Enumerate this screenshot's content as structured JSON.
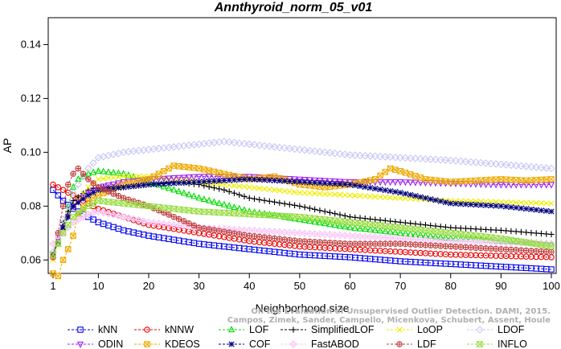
{
  "chart_data": {
    "type": "line",
    "title": "Annthyroid_norm_05_v01",
    "xlabel": "Neighborhood size",
    "ylabel": "AP",
    "xlim": [
      1,
      100
    ],
    "ylim": [
      0.055,
      0.15
    ],
    "xticks": [
      1,
      10,
      20,
      30,
      40,
      50,
      60,
      70,
      80,
      90,
      100
    ],
    "yticks": [
      0.06,
      0.08,
      0.1,
      0.12,
      0.14
    ],
    "ytick_labels": [
      "0.06",
      "0.08",
      "0.10",
      "0.12",
      "0.14"
    ],
    "legend_position": "bottom",
    "watermark": [
      "Campos, Zimek, Sander, Campello, Micenkova, Schubert, Assent, Houle",
      "On the Evaluation of Unsupervised Outlier Detection. DAMI, 2015."
    ],
    "series": [
      {
        "name": "kNN",
        "color": "#0000ee",
        "marker": "square",
        "x": [
          1,
          2,
          3,
          5,
          8,
          10,
          15,
          20,
          30,
          40,
          50,
          60,
          70,
          80,
          90,
          100
        ],
        "y": [
          0.086,
          0.084,
          0.082,
          0.079,
          0.076,
          0.074,
          0.071,
          0.069,
          0.066,
          0.064,
          0.062,
          0.061,
          0.0595,
          0.0585,
          0.0575,
          0.0565
        ]
      },
      {
        "name": "kNNW",
        "color": "#ee0000",
        "marker": "circle",
        "x": [
          1,
          2,
          3,
          5,
          8,
          10,
          15,
          20,
          30,
          40,
          50,
          60,
          70,
          80,
          90,
          100
        ],
        "y": [
          0.088,
          0.087,
          0.086,
          0.084,
          0.081,
          0.079,
          0.076,
          0.073,
          0.07,
          0.067,
          0.065,
          0.064,
          0.063,
          0.062,
          0.0615,
          0.061
        ]
      },
      {
        "name": "LOF",
        "color": "#00dd00",
        "marker": "triangle",
        "x": [
          1,
          2,
          3,
          4,
          5,
          6,
          8,
          10,
          15,
          20,
          25,
          30,
          40,
          50,
          60,
          70,
          80,
          90,
          100
        ],
        "y": [
          0.062,
          0.066,
          0.072,
          0.08,
          0.087,
          0.09,
          0.092,
          0.093,
          0.092,
          0.089,
          0.086,
          0.083,
          0.078,
          0.075,
          0.072,
          0.07,
          0.068,
          0.067,
          0.066
        ]
      },
      {
        "name": "SimplifiedLOF",
        "color": "#000000",
        "marker": "plus",
        "x": [
          1,
          2,
          3,
          5,
          8,
          10,
          15,
          20,
          25,
          30,
          35,
          40,
          50,
          60,
          70,
          80,
          90,
          100
        ],
        "y": [
          0.061,
          0.068,
          0.074,
          0.082,
          0.086,
          0.087,
          0.087,
          0.088,
          0.089,
          0.088,
          0.086,
          0.083,
          0.08,
          0.076,
          0.074,
          0.072,
          0.071,
          0.0695
        ]
      },
      {
        "name": "LoOP",
        "color": "#eeee00",
        "marker": "x",
        "x": [
          1,
          3,
          5,
          8,
          10,
          15,
          20,
          25,
          30,
          40,
          50,
          60,
          70,
          80,
          90,
          100
        ],
        "y": [
          0.06,
          0.072,
          0.08,
          0.087,
          0.09,
          0.091,
          0.091,
          0.09,
          0.089,
          0.087,
          0.085,
          0.084,
          0.083,
          0.082,
          0.0815,
          0.081
        ]
      },
      {
        "name": "LDOF",
        "color": "#c8c8f8",
        "marker": "diamond",
        "x": [
          1,
          3,
          5,
          8,
          10,
          15,
          20,
          25,
          30,
          35,
          40,
          50,
          60,
          70,
          80,
          90,
          100
        ],
        "y": [
          0.063,
          0.075,
          0.085,
          0.094,
          0.098,
          0.1,
          0.101,
          0.102,
          0.103,
          0.104,
          0.103,
          0.101,
          0.099,
          0.098,
          0.097,
          0.0955,
          0.094
        ]
      },
      {
        "name": "ODIN",
        "color": "#a020f0",
        "marker": "triangledown",
        "x": [
          1,
          3,
          5,
          8,
          10,
          15,
          20,
          30,
          40,
          50,
          60,
          70,
          80,
          90,
          100
        ],
        "y": [
          0.062,
          0.072,
          0.08,
          0.085,
          0.087,
          0.089,
          0.09,
          0.091,
          0.091,
          0.09,
          0.089,
          0.089,
          0.0885,
          0.088,
          0.088
        ]
      },
      {
        "name": "KDEOS",
        "color": "#eeaa00",
        "marker": "boxx",
        "x": [
          1,
          2,
          3,
          4,
          5,
          6,
          8,
          10,
          15,
          20,
          25,
          30,
          35,
          40,
          45,
          50,
          55,
          60,
          65,
          68,
          70,
          75,
          80,
          85,
          90,
          95,
          100
        ],
        "y": [
          0.055,
          0.054,
          0.06,
          0.064,
          0.069,
          0.077,
          0.082,
          0.084,
          0.088,
          0.09,
          0.095,
          0.094,
          0.092,
          0.09,
          0.091,
          0.088,
          0.087,
          0.088,
          0.09,
          0.094,
          0.093,
          0.09,
          0.089,
          0.0895,
          0.09,
          0.0895,
          0.09
        ]
      },
      {
        "name": "COF",
        "color": "#000080",
        "marker": "star",
        "x": [
          1,
          2,
          3,
          5,
          8,
          10,
          15,
          20,
          30,
          40,
          50,
          60,
          70,
          80,
          90,
          100
        ],
        "y": [
          0.062,
          0.067,
          0.072,
          0.08,
          0.084,
          0.086,
          0.087,
          0.088,
          0.089,
          0.09,
          0.089,
          0.088,
          0.085,
          0.081,
          0.08,
          0.078
        ]
      },
      {
        "name": "FastABOD",
        "color": "#f8c8f8",
        "marker": "diamondplus",
        "x": [
          1,
          3,
          5,
          8,
          10,
          15,
          20,
          30,
          40,
          50,
          60,
          70,
          80,
          90,
          100
        ],
        "y": [
          0.066,
          0.07,
          0.074,
          0.077,
          0.078,
          0.076,
          0.074,
          0.072,
          0.071,
          0.07,
          0.069,
          0.068,
          0.067,
          0.0665,
          0.066
        ]
      },
      {
        "name": "LDF",
        "color": "#c04040",
        "marker": "circleplus",
        "x": [
          1,
          2,
          3,
          4,
          5,
          6,
          8,
          10,
          15,
          20,
          25,
          30,
          40,
          50,
          60,
          70,
          80,
          90,
          100
        ],
        "y": [
          0.061,
          0.07,
          0.08,
          0.088,
          0.092,
          0.094,
          0.09,
          0.087,
          0.083,
          0.08,
          0.076,
          0.072,
          0.069,
          0.067,
          0.066,
          0.066,
          0.065,
          0.064,
          0.063
        ]
      },
      {
        "name": "INFLO",
        "color": "#99dd44",
        "marker": "hourglass",
        "x": [
          1,
          3,
          5,
          8,
          10,
          15,
          20,
          25,
          30,
          40,
          50,
          60,
          70,
          80,
          90,
          100
        ],
        "y": [
          0.062,
          0.07,
          0.076,
          0.08,
          0.082,
          0.081,
          0.08,
          0.079,
          0.078,
          0.077,
          0.076,
          0.074,
          0.072,
          0.07,
          0.068,
          0.065
        ]
      }
    ],
    "legend_order": [
      [
        "kNN",
        "kNNW",
        "LOF",
        "SimplifiedLOF",
        "LoOP",
        "LDOF"
      ],
      [
        "ODIN",
        "KDEOS",
        "COF",
        "FastABOD",
        "LDF",
        "INFLO"
      ]
    ]
  }
}
